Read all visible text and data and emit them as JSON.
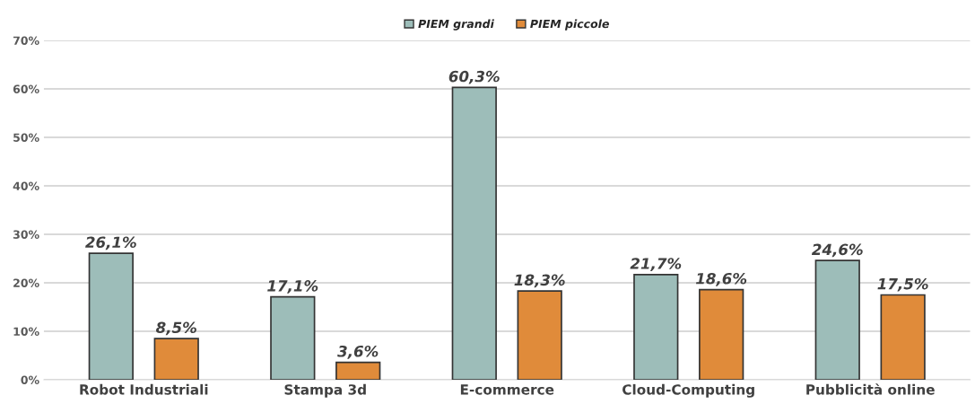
{
  "chart_data": {
    "type": "bar",
    "categories": [
      "Robot Industriali",
      "Stampa 3d",
      "E-commerce",
      "Cloud-Computing",
      "Pubblicità online"
    ],
    "series": [
      {
        "name": "PIEM grandi",
        "color": "#9dbdb9",
        "values": [
          26.1,
          17.1,
          60.3,
          21.7,
          24.6
        ],
        "value_labels": [
          "26,1%",
          "17,1%",
          "60,3%",
          "21,7%",
          "24,6%"
        ]
      },
      {
        "name": "PIEM piccole",
        "color": "#e08b3a",
        "values": [
          8.5,
          3.6,
          18.3,
          18.6,
          17.5
        ],
        "value_labels": [
          "8,5%",
          "3,6%",
          "18,3%",
          "18,6%",
          "17,5%"
        ]
      }
    ],
    "ylim": [
      0,
      70
    ],
    "yticks": [
      {
        "value": 0,
        "label": "0%"
      },
      {
        "value": 10,
        "label": "10%"
      },
      {
        "value": 20,
        "label": "20%"
      },
      {
        "value": 30,
        "label": "30%"
      },
      {
        "value": 40,
        "label": "40%"
      },
      {
        "value": 50,
        "label": "50%"
      },
      {
        "value": 60,
        "label": "60%"
      },
      {
        "value": 70,
        "label": "70%"
      }
    ],
    "grid": "y",
    "legend": "top"
  }
}
